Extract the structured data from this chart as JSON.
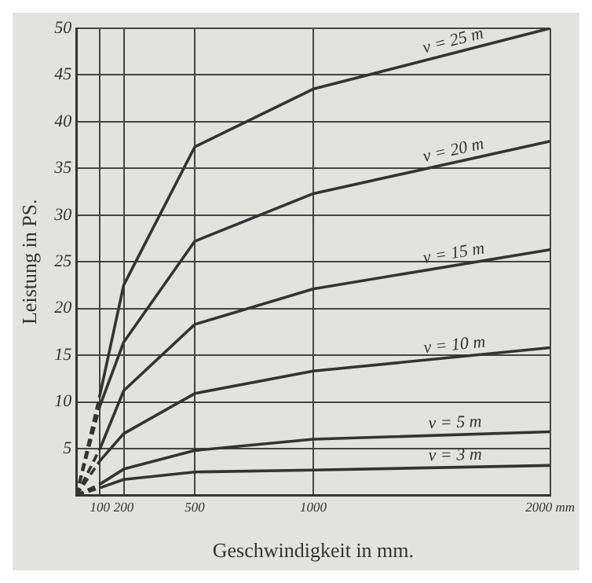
{
  "chart_data": {
    "type": "line",
    "xlabel": "Geschwindigkeit in mm.",
    "ylabel": "Leistung in PS.",
    "xlim": [
      0,
      2000
    ],
    "xticks": [
      100,
      200,
      500,
      1000,
      {
        "value": 2000,
        "label": "2000 mm"
      }
    ],
    "ylim": [
      0,
      50
    ],
    "yticks": [
      {
        "value": 0,
        "label": null
      },
      5,
      10,
      15,
      20,
      25,
      30,
      35,
      40,
      45,
      50
    ],
    "grid": true,
    "legend": false,
    "marker": "none",
    "line_style": "solid",
    "series": [
      {
        "name": "v = 25 m",
        "color": "#333333",
        "x": [
          100,
          200,
          500,
          1000,
          2000
        ],
        "values": [
          10.8,
          22.5,
          37.3,
          43.5,
          50
        ]
      },
      {
        "name": "v = 20 m",
        "color": "#333333",
        "x": [
          100,
          200,
          500,
          1000,
          2000
        ],
        "values": [
          9.6,
          16.4,
          27.2,
          32.3,
          37.9
        ]
      },
      {
        "name": "v = 15 m",
        "color": "#333333",
        "x": [
          100,
          200,
          500,
          1000,
          2000
        ],
        "values": [
          5,
          11.2,
          18.3,
          22.1,
          26.3
        ]
      },
      {
        "name": "v = 10 m",
        "color": "#333333",
        "x": [
          100,
          200,
          500,
          1000,
          2000
        ],
        "values": [
          3.7,
          6.6,
          10.9,
          13.3,
          15.8
        ]
      },
      {
        "name": "v = 5 m",
        "color": "#333333",
        "x": [
          100,
          200,
          500,
          1000,
          2000
        ],
        "values": [
          1.2,
          2.8,
          4.8,
          6,
          6.8
        ]
      },
      {
        "name": "v = 3 m",
        "color": "#333333",
        "x": [
          100,
          200,
          500,
          1000,
          2000
        ],
        "values": [
          0.8,
          1.7,
          2.5,
          2.7,
          3.2
        ]
      },
      {
        "color": "#333333",
        "line_style": "dashed",
        "x": [
          0,
          100
        ],
        "values": [
          0,
          10.8
        ]
      },
      {
        "color": "#333333",
        "line_style": "dashed",
        "x": [
          0,
          100
        ],
        "values": [
          0,
          9.6
        ]
      },
      {
        "color": "#333333",
        "line_style": "dashed",
        "x": [
          0,
          100
        ],
        "values": [
          0,
          5
        ]
      },
      {
        "color": "#333333",
        "line_style": "dashed",
        "x": [
          0,
          100
        ],
        "values": [
          0,
          3.7
        ]
      },
      {
        "color": "#333333",
        "line_style": "dashed",
        "x": [
          0,
          100
        ],
        "values": [
          0,
          1.2
        ]
      },
      {
        "color": "#333333",
        "line_style": "dashed",
        "x": [
          0,
          100
        ],
        "values": [
          0,
          0.8
        ]
      }
    ]
  }
}
